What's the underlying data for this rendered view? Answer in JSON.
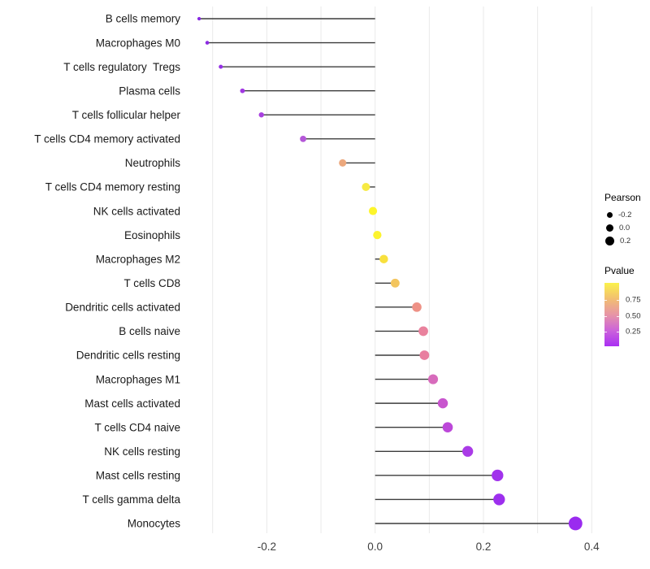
{
  "chart_data": {
    "type": "lollipop",
    "orientation": "horizontal",
    "title": "",
    "xlabel": "",
    "ylabel": "",
    "grid": "vertical major gridlines every 0.1, light gray, no horizontal gridlines",
    "xlim": [
      -0.345,
      0.43
    ],
    "x_gridline_values": [
      -0.3,
      -0.2,
      -0.1,
      0.0,
      0.1,
      0.2,
      0.3,
      0.4
    ],
    "x_ticks": [
      -0.2,
      0.0,
      0.2,
      0.4
    ],
    "x_tick_labels": [
      "-0.2",
      "0.0",
      "0.2",
      "0.4"
    ],
    "baseline_value": 0.0,
    "categories": [
      "B cells memory",
      "Macrophages M0",
      "T cells regulatory  Tregs",
      "Plasma cells",
      "T cells follicular helper",
      "T cells CD4 memory activated",
      "Neutrophils",
      "T cells CD4 memory resting",
      "NK cells activated",
      "Eosinophils",
      "Macrophages M2",
      "T cells CD8",
      "Dendritic cells activated",
      "B cells naive",
      "Dendritic cells resting",
      "Macrophages M1",
      "Mast cells activated",
      "T cells CD4 naive",
      "NK cells resting",
      "Mast cells resting",
      "T cells gamma delta",
      "Monocytes"
    ],
    "series": [
      {
        "name": "Pearson",
        "values": [
          -0.325,
          -0.31,
          -0.285,
          -0.245,
          -0.21,
          -0.133,
          -0.06,
          -0.017,
          -0.004,
          0.004,
          0.016,
          0.037,
          0.077,
          0.089,
          0.091,
          0.107,
          0.125,
          0.134,
          0.171,
          0.226,
          0.229,
          0.37
        ]
      }
    ],
    "point_colors_by_pvalue": [
      "#8729E2",
      "#8C2BE2",
      "#9530E5",
      "#A138E2",
      "#A83FDF",
      "#B457D8",
      "#ECA87D",
      "#F7EA43",
      "#FDF52B",
      "#FCF32E",
      "#F8E03D",
      "#F3C55E",
      "#EE9186",
      "#E9829D",
      "#E87E9F",
      "#D76BBC",
      "#C855CE",
      "#BC48D9",
      "#AA3BE7",
      "#A132EC",
      "#9D2FEE",
      "#9A2BEF"
    ],
    "stick_color": "#3C3C3C",
    "gridline_color": "#E9E9E9",
    "legend": {
      "position": "right",
      "size": {
        "title": "Pearson",
        "entries": [
          {
            "label": "-0.2"
          },
          {
            "label": "0.0"
          },
          {
            "label": "0.2"
          }
        ]
      },
      "color": {
        "title": "Pvalue",
        "ticks": [
          "0.75",
          "0.50",
          "0.25"
        ],
        "gradient_top_to_bottom": [
          "#FBF24B",
          "#F2BE71",
          "#E795A6",
          "#CC63DA",
          "#A92FF3"
        ]
      }
    }
  }
}
